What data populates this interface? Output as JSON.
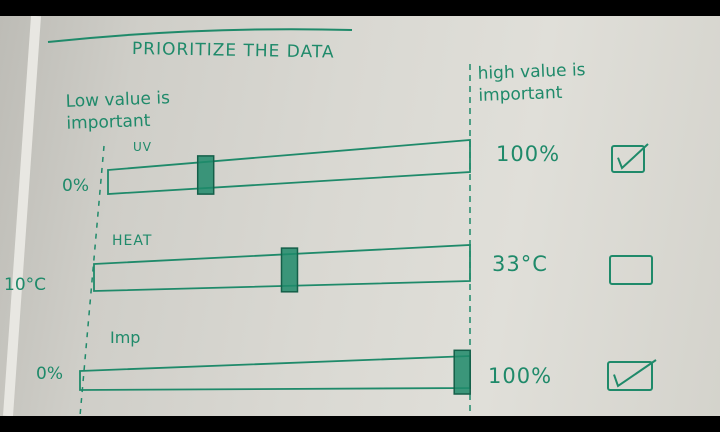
{
  "title": "PRIORITIZE THE DATA",
  "low_label": [
    "Low value is",
    "important"
  ],
  "high_label": [
    "high value is",
    "important"
  ],
  "ink_color": "#1f8a6a",
  "sliders": [
    {
      "label": "UV",
      "min": "0%",
      "max": "100%",
      "value_fraction": 0.27,
      "checked": true
    },
    {
      "label": "HEAT",
      "min": "10°C",
      "max": "33°C",
      "value_fraction": 0.52,
      "checked": false
    },
    {
      "label": "Imp",
      "min": "0%",
      "max": "100%",
      "value_fraction": 0.98,
      "checked": true
    }
  ]
}
